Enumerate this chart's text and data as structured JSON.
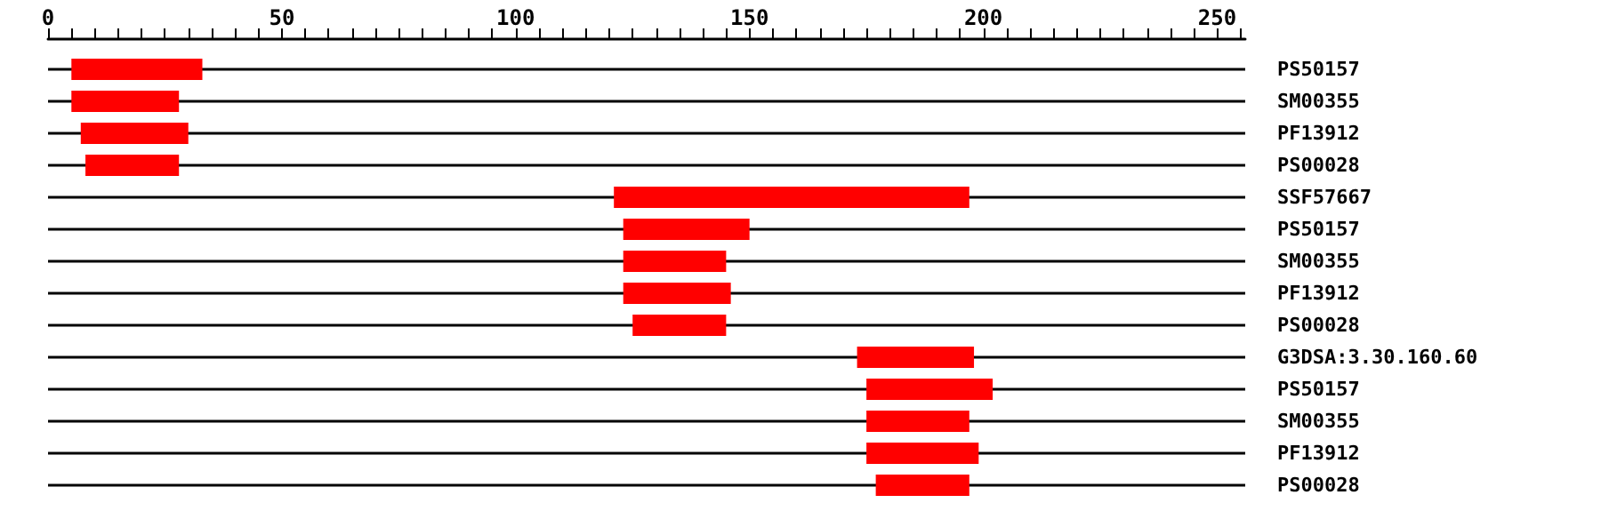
{
  "chart_data": {
    "type": "bar",
    "orientation": "horizontal",
    "categories": [
      "PS50157",
      "SM00355",
      "PF13912",
      "PS00028",
      "SSF57667",
      "PS50157",
      "SM00355",
      "PF13912",
      "PS00028",
      "G3DSA:3.30.160.60",
      "PS50157",
      "SM00355",
      "PF13912",
      "PS00028"
    ],
    "series": [
      {
        "color": "#ff0000",
        "base": [
          5,
          5,
          7,
          8,
          121,
          123,
          123,
          123,
          125,
          173,
          175,
          175,
          175,
          177
        ],
        "values": [
          28,
          23,
          23,
          20,
          76,
          27,
          22,
          23,
          20,
          25,
          27,
          22,
          24,
          20
        ]
      }
    ],
    "xlim": [
      0,
      256
    ],
    "xticks": [
      0,
      {
        "value": 5,
        "label": null
      },
      {
        "value": 10,
        "label": null
      },
      {
        "value": 15,
        "label": null
      },
      {
        "value": 20,
        "label": null
      },
      {
        "value": 25,
        "label": null
      },
      {
        "value": 30,
        "label": null
      },
      {
        "value": 35,
        "label": null
      },
      {
        "value": 40,
        "label": null
      },
      {
        "value": 45,
        "label": null
      },
      50,
      {
        "value": 55,
        "label": null
      },
      {
        "value": 60,
        "label": null
      },
      {
        "value": 65,
        "label": null
      },
      {
        "value": 70,
        "label": null
      },
      {
        "value": 75,
        "label": null
      },
      {
        "value": 80,
        "label": null
      },
      {
        "value": 85,
        "label": null
      },
      {
        "value": 90,
        "label": null
      },
      {
        "value": 95,
        "label": null
      },
      100,
      {
        "value": 105,
        "label": null
      },
      {
        "value": 110,
        "label": null
      },
      {
        "value": 115,
        "label": null
      },
      {
        "value": 120,
        "label": null
      },
      {
        "value": 125,
        "label": null
      },
      {
        "value": 130,
        "label": null
      },
      {
        "value": 135,
        "label": null
      },
      {
        "value": 140,
        "label": null
      },
      {
        "value": 145,
        "label": null
      },
      150,
      {
        "value": 155,
        "label": null
      },
      {
        "value": 160,
        "label": null
      },
      {
        "value": 165,
        "label": null
      },
      {
        "value": 170,
        "label": null
      },
      {
        "value": 175,
        "label": null
      },
      {
        "value": 180,
        "label": null
      },
      {
        "value": 185,
        "label": null
      },
      {
        "value": 190,
        "label": null
      },
      {
        "value": 195,
        "label": null
      },
      200,
      {
        "value": 205,
        "label": null
      },
      {
        "value": 210,
        "label": null
      },
      {
        "value": 215,
        "label": null
      },
      {
        "value": 220,
        "label": null
      },
      {
        "value": 225,
        "label": null
      },
      {
        "value": 230,
        "label": null
      },
      {
        "value": 235,
        "label": null
      },
      {
        "value": 240,
        "label": null
      },
      {
        "value": 245,
        "label": null
      },
      250,
      {
        "value": 255,
        "label": null
      }
    ],
    "grid": "y"
  }
}
